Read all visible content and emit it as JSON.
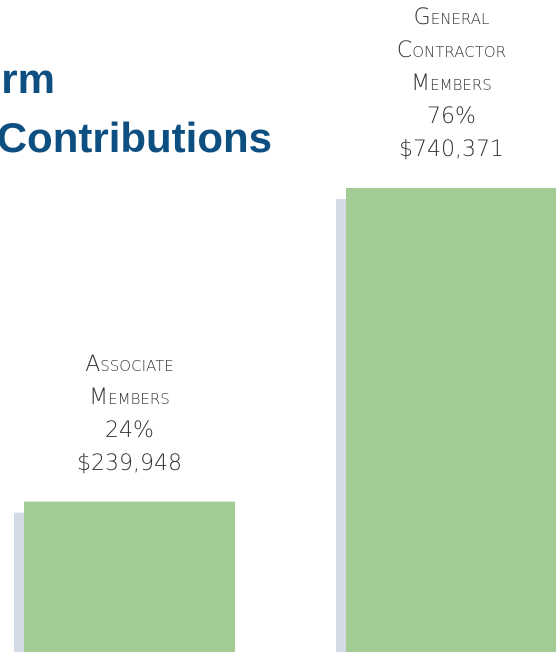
{
  "chart_data": {
    "type": "bar",
    "title_lines": [
      "rm",
      "Contributions"
    ],
    "categories": [
      "Associate Members",
      "General Contractor Members"
    ],
    "values": [
      239948,
      740371
    ],
    "value_labels": [
      "$239,948",
      "$740,371"
    ],
    "shares": [
      24,
      76
    ],
    "share_labels": [
      "24%",
      "76%"
    ],
    "color": "#a3cb94",
    "shadow_color": "#d3dbe7"
  }
}
